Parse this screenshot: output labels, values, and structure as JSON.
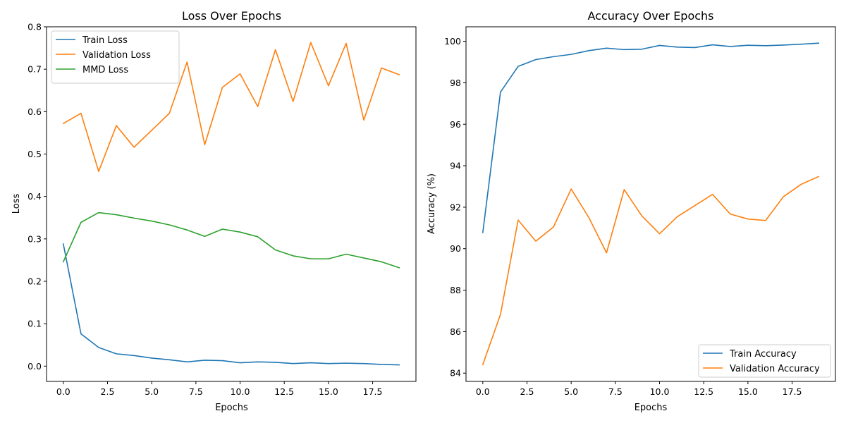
{
  "chart_data": [
    {
      "type": "line",
      "title": "Loss Over Epochs",
      "xlabel": "Epochs",
      "ylabel": "Loss",
      "xlim": [
        -0.95,
        19.95
      ],
      "ylim": [
        -0.036,
        0.8
      ],
      "xticks": [
        0,
        2.5,
        5,
        7.5,
        10,
        12.5,
        15,
        17.5
      ],
      "xtick_labels": [
        "0.0",
        "2.5",
        "5.0",
        "7.5",
        "10.0",
        "12.5",
        "15.0",
        "17.5"
      ],
      "yticks": [
        0,
        0.1,
        0.2,
        0.3,
        0.4,
        0.5,
        0.6,
        0.7,
        0.8
      ],
      "ytick_labels": [
        "0.0",
        "0.1",
        "0.2",
        "0.3",
        "0.4",
        "0.5",
        "0.6",
        "0.7",
        "0.8"
      ],
      "legend_position": "top-left",
      "grid": false,
      "x": [
        0,
        1,
        2,
        3,
        4,
        5,
        6,
        7,
        8,
        9,
        10,
        11,
        12,
        13,
        14,
        15,
        16,
        17,
        18,
        19
      ],
      "series": [
        {
          "name": "Train Loss",
          "color": "#1f77b4",
          "values": [
            0.288,
            0.076,
            0.044,
            0.029,
            0.025,
            0.019,
            0.015,
            0.01,
            0.014,
            0.013,
            0.008,
            0.01,
            0.009,
            0.006,
            0.008,
            0.006,
            0.007,
            0.006,
            0.004,
            0.003
          ]
        },
        {
          "name": "Validation Loss",
          "color": "#ff7f0e",
          "values": [
            0.572,
            0.596,
            0.459,
            0.567,
            0.516,
            0.556,
            0.596,
            0.717,
            0.522,
            0.657,
            0.689,
            0.612,
            0.746,
            0.624,
            0.763,
            0.661,
            0.761,
            0.58,
            0.703,
            0.687
          ]
        },
        {
          "name": "MMD Loss",
          "color": "#2ca02c",
          "values": [
            0.246,
            0.339,
            0.362,
            0.357,
            0.349,
            0.342,
            0.333,
            0.321,
            0.306,
            0.323,
            0.316,
            0.305,
            0.274,
            0.26,
            0.253,
            0.253,
            0.264,
            0.255,
            0.246,
            0.232
          ]
        }
      ]
    },
    {
      "type": "line",
      "title": "Accuracy Over Epochs",
      "xlabel": "Epochs",
      "ylabel": "Accuracy (%)",
      "xlim": [
        -0.95,
        19.95
      ],
      "ylim": [
        83.6,
        100.7
      ],
      "xticks": [
        0,
        2.5,
        5,
        7.5,
        10,
        12.5,
        15,
        17.5
      ],
      "xtick_labels": [
        "0.0",
        "2.5",
        "5.0",
        "7.5",
        "10.0",
        "12.5",
        "15.0",
        "17.5"
      ],
      "yticks": [
        84,
        86,
        88,
        90,
        92,
        94,
        96,
        98,
        100
      ],
      "ytick_labels": [
        "84",
        "86",
        "88",
        "90",
        "92",
        "94",
        "96",
        "98",
        "100"
      ],
      "legend_position": "bottom-right",
      "grid": false,
      "x": [
        0,
        1,
        2,
        3,
        4,
        5,
        6,
        7,
        8,
        9,
        10,
        11,
        12,
        13,
        14,
        15,
        16,
        17,
        18,
        19
      ],
      "series": [
        {
          "name": "Train Accuracy",
          "color": "#1f77b4",
          "values": [
            90.78,
            97.55,
            98.79,
            99.12,
            99.26,
            99.37,
            99.55,
            99.67,
            99.6,
            99.62,
            99.8,
            99.72,
            99.7,
            99.83,
            99.75,
            99.81,
            99.79,
            99.82,
            99.86,
            99.91
          ]
        },
        {
          "name": "Validation Accuracy",
          "color": "#ff7f0e",
          "values": [
            84.41,
            86.83,
            91.38,
            90.36,
            91.05,
            92.88,
            91.5,
            89.8,
            92.85,
            91.58,
            90.72,
            91.54,
            92.08,
            92.62,
            91.67,
            91.43,
            91.36,
            92.5,
            93.1,
            93.48
          ]
        }
      ]
    }
  ]
}
